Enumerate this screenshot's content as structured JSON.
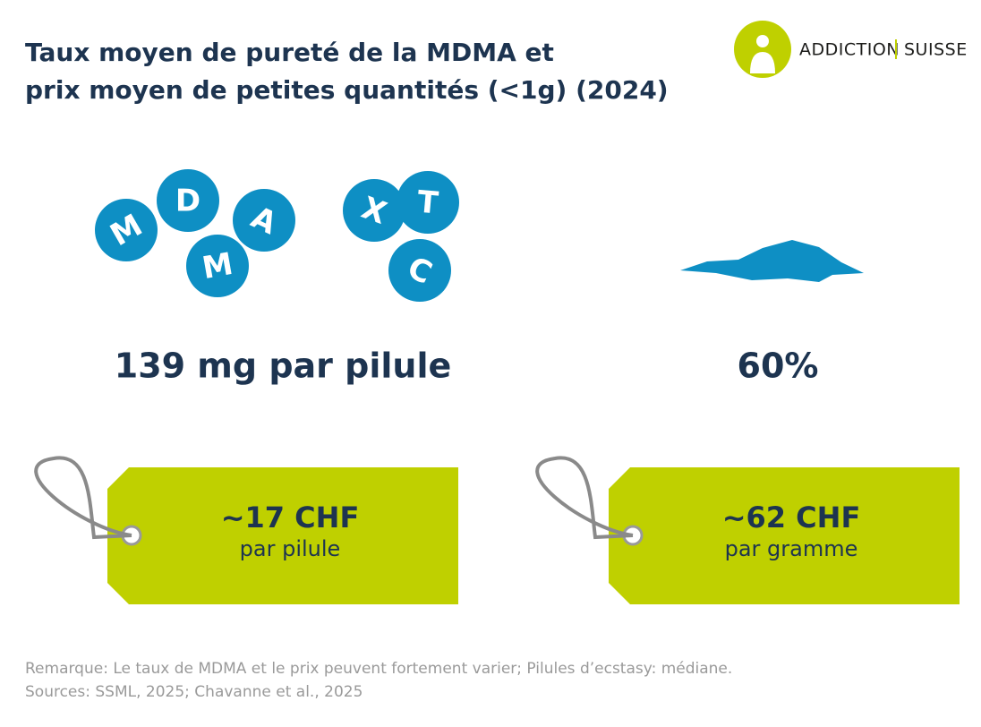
{
  "header": {
    "title": [
      "Taux moyen de pureté de la MDMA et",
      "prix moyen de petites quantités (<1g) (2024)"
    ],
    "logo": [
      "ADDICTION",
      "SUISSE"
    ]
  },
  "pills": {
    "mdma": [
      "M",
      "D",
      "A",
      "M"
    ],
    "xtc": [
      "X",
      "T",
      "C"
    ]
  },
  "stats": [
    "139 mg par pilule",
    "60%"
  ],
  "tags": [
    {
      "price": "~17 CHF",
      "unit": "par pilule"
    },
    {
      "price": "~62 CHF",
      "unit": "par gramme"
    }
  ],
  "footer": [
    "Remarque: Le taux de MDMA et le prix peuvent fortement varier; Pilules d’ecstasy: médiane.",
    "Sources: SSML, 2025; Chavanne et al., 2025"
  ]
}
